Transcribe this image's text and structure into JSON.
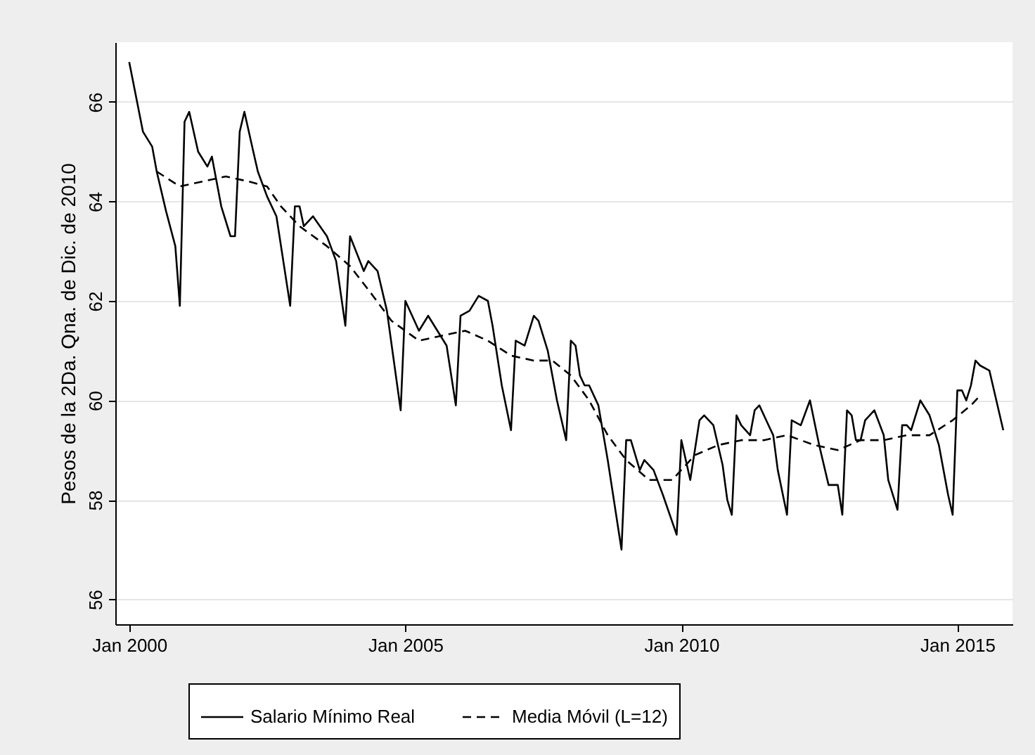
{
  "chart_data": {
    "type": "line",
    "ylabel": "Pesos de la 2Da. Qna. de Dic. de 2010",
    "xlim": [
      "1999-10",
      "2016-01"
    ],
    "ylim": [
      55.5,
      67.2
    ],
    "yticks": [
      56,
      58,
      60,
      62,
      64,
      66
    ],
    "xticks": [
      {
        "value": "2000-01",
        "label": "Jan 2000"
      },
      {
        "value": "2005-01",
        "label": "Jan 2005"
      },
      {
        "value": "2010-01",
        "label": "Jan 2010"
      },
      {
        "value": "2015-01",
        "label": "Jan 2015"
      }
    ],
    "grid": "y",
    "legend": "bottom",
    "marker": "none",
    "series": [
      {
        "name": "Salario Mínimo Real",
        "color": "#000000",
        "line_style": "solid",
        "x": [
          "2000-01",
          "2000-04",
          "2000-06",
          "2000-07",
          "2000-09",
          "2000-11",
          "2000-12",
          "2001-01",
          "2001-02",
          "2001-04",
          "2001-06",
          "2001-07",
          "2001-09",
          "2001-11",
          "2001-12",
          "2002-01",
          "2002-02",
          "2002-04",
          "2002-05",
          "2002-07",
          "2002-09",
          "2002-12",
          "2003-01",
          "2003-02",
          "2003-03",
          "2003-05",
          "2003-08",
          "2003-10",
          "2003-12",
          "2004-01",
          "2004-04",
          "2004-05",
          "2004-07",
          "2004-09",
          "2004-12",
          "2005-01",
          "2005-04",
          "2005-06",
          "2005-08",
          "2005-10",
          "2005-12",
          "2006-01",
          "2006-03",
          "2006-05",
          "2006-07",
          "2006-08",
          "2006-10",
          "2006-12",
          "2007-01",
          "2007-03",
          "2007-05",
          "2007-06",
          "2007-08",
          "2007-10",
          "2007-12",
          "2008-01",
          "2008-02",
          "2008-03",
          "2008-04",
          "2008-05",
          "2008-07",
          "2008-09",
          "2008-12",
          "2009-01",
          "2009-02",
          "2009-04",
          "2009-05",
          "2009-07",
          "2009-09",
          "2009-12",
          "2010-01",
          "2010-03",
          "2010-05",
          "2010-06",
          "2010-08",
          "2010-10",
          "2010-11",
          "2010-12",
          "2011-01",
          "2011-02",
          "2011-04",
          "2011-05",
          "2011-06",
          "2011-08",
          "2011-09",
          "2011-10",
          "2011-12",
          "2012-01",
          "2012-03",
          "2012-05",
          "2012-07",
          "2012-09",
          "2012-11",
          "2012-12",
          "2013-01",
          "2013-02",
          "2013-03",
          "2013-04",
          "2013-05",
          "2013-07",
          "2013-09",
          "2013-10",
          "2013-12",
          "2014-01",
          "2014-02",
          "2014-03",
          "2014-05",
          "2014-07",
          "2014-09",
          "2014-11",
          "2014-12",
          "2015-01",
          "2015-02",
          "2015-03",
          "2015-04",
          "2015-05",
          "2015-06",
          "2015-08",
          "2015-11"
        ],
        "values": [
          66.8,
          65.4,
          65.1,
          64.6,
          63.8,
          63.1,
          61.9,
          65.6,
          65.8,
          65.0,
          64.7,
          64.9,
          63.9,
          63.3,
          63.3,
          65.4,
          65.8,
          65.0,
          64.6,
          64.1,
          63.7,
          61.9,
          63.9,
          63.9,
          63.5,
          63.7,
          63.3,
          62.8,
          61.5,
          63.3,
          62.6,
          62.8,
          62.6,
          61.8,
          59.8,
          62.0,
          61.4,
          61.7,
          61.4,
          61.1,
          59.9,
          61.7,
          61.8,
          62.1,
          62.0,
          61.5,
          60.3,
          59.4,
          61.2,
          61.1,
          61.7,
          61.6,
          61.0,
          60.0,
          59.2,
          61.2,
          61.1,
          60.5,
          60.3,
          60.3,
          59.9,
          58.8,
          57.0,
          59.2,
          59.2,
          58.6,
          58.8,
          58.6,
          58.1,
          57.3,
          59.2,
          58.4,
          59.6,
          59.7,
          59.5,
          58.7,
          58.0,
          57.7,
          59.7,
          59.5,
          59.3,
          59.8,
          59.9,
          59.5,
          59.3,
          58.6,
          57.7,
          59.6,
          59.5,
          60.0,
          59.1,
          58.3,
          58.3,
          57.7,
          59.8,
          59.7,
          59.2,
          59.2,
          59.6,
          59.8,
          59.3,
          58.4,
          57.8,
          59.5,
          59.5,
          59.4,
          60.0,
          59.7,
          59.1,
          58.1,
          57.7,
          60.2,
          60.2,
          60.0,
          60.3,
          60.8,
          60.7,
          60.6,
          59.4
        ]
      },
      {
        "name": "Media Móvil (L=12)",
        "color": "#000000",
        "line_style": "dashed",
        "x": [
          "2000-07",
          "2000-12",
          "2001-05",
          "2001-10",
          "2002-03",
          "2002-07",
          "2002-10",
          "2003-02",
          "2003-08",
          "2004-01",
          "2004-06",
          "2004-10",
          "2005-04",
          "2005-09",
          "2006-02",
          "2006-07",
          "2006-12",
          "2007-05",
          "2007-09",
          "2008-01",
          "2008-05",
          "2008-09",
          "2009-01",
          "2009-06",
          "2009-11",
          "2010-04",
          "2010-09",
          "2011-02",
          "2011-07",
          "2011-12",
          "2012-06",
          "2012-11",
          "2013-04",
          "2013-09",
          "2014-02",
          "2014-07",
          "2014-12",
          "2015-04",
          "2015-06"
        ],
        "values": [
          64.6,
          64.3,
          64.4,
          64.5,
          64.4,
          64.3,
          63.9,
          63.5,
          63.1,
          62.7,
          62.1,
          61.6,
          61.2,
          61.3,
          61.4,
          61.2,
          60.9,
          60.8,
          60.8,
          60.5,
          60.0,
          59.3,
          58.8,
          58.4,
          58.4,
          58.9,
          59.1,
          59.2,
          59.2,
          59.3,
          59.1,
          59.0,
          59.2,
          59.2,
          59.3,
          59.3,
          59.6,
          59.9,
          60.1
        ]
      }
    ]
  }
}
